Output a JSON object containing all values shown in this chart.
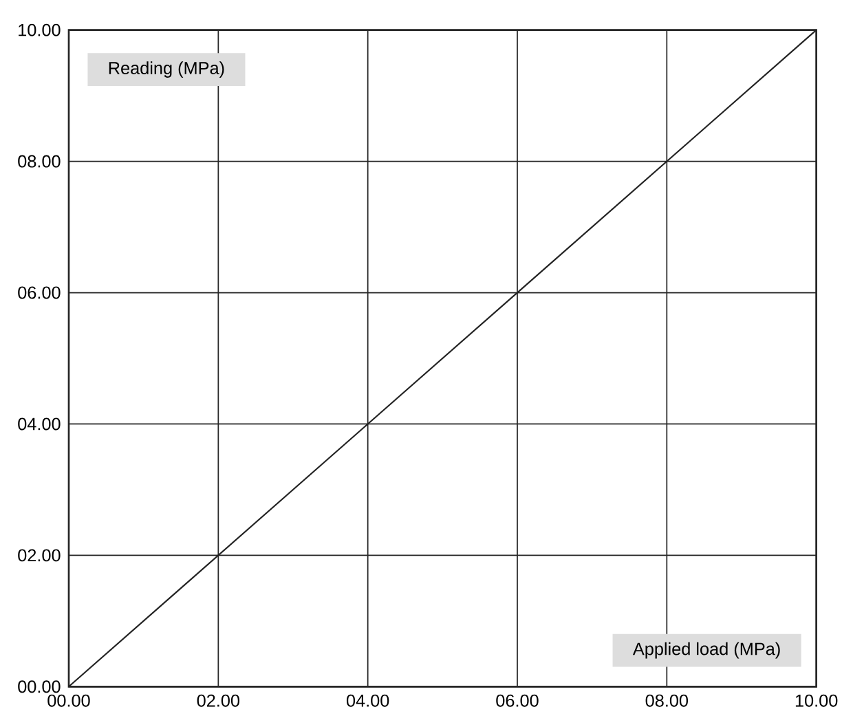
{
  "chart_data": {
    "type": "line",
    "xlabel": "Applied load (MPa)",
    "ylabel": "Reading (MPa)",
    "x": [
      0,
      10
    ],
    "series": [
      {
        "color": "#222222",
        "values": [
          0,
          10
        ]
      }
    ],
    "xlim": [
      0,
      10
    ],
    "ylim": [
      0,
      10
    ],
    "xticks": [
      {
        "value": 0,
        "label": "00.00"
      },
      {
        "value": 2,
        "label": "02.00"
      },
      {
        "value": 4,
        "label": "04.00"
      },
      {
        "value": 6,
        "label": "06.00"
      },
      {
        "value": 8,
        "label": "08.00"
      },
      {
        "value": 10,
        "label": "10.00"
      }
    ],
    "yticks": [
      {
        "value": 0,
        "label": "00.00"
      },
      {
        "value": 2,
        "label": "02.00"
      },
      {
        "value": 4,
        "label": "04.00"
      },
      {
        "value": 6,
        "label": "06.00"
      },
      {
        "value": 8,
        "label": "08.00"
      },
      {
        "value": 10,
        "label": "10.00"
      }
    ],
    "grid": true
  }
}
